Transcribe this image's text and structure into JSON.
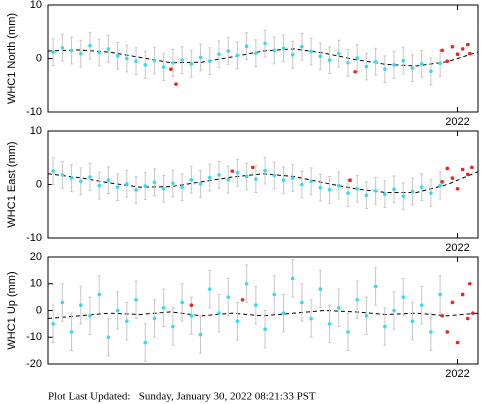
{
  "chart_data": [
    {
      "type": "scatter",
      "ylabel": "WHC1 North (mm)",
      "xlim": [
        2018.0,
        2022.2
      ],
      "ylim": [
        -10,
        10
      ],
      "xticks": [
        2022
      ],
      "yticks": [
        -10,
        0,
        10
      ],
      "series": [
        {
          "style": "line",
          "color": "#000000",
          "x": [
            2018.0,
            2018.3,
            2018.6,
            2018.9,
            2019.2,
            2019.5,
            2019.8,
            2020.1,
            2020.4,
            2020.7,
            2021.0,
            2021.3,
            2021.6,
            2021.9,
            2022.2
          ],
          "values": [
            1.4,
            1.6,
            1.2,
            0.2,
            -0.8,
            -0.7,
            0.3,
            1.4,
            1.8,
            1.0,
            -0.2,
            -1.1,
            -1.4,
            -0.6,
            1.2
          ]
        },
        {
          "style": "points",
          "color": "#33ddee",
          "error": 2.5,
          "x": [
            2018.05,
            2018.14,
            2018.23,
            2018.32,
            2018.41,
            2018.5,
            2018.59,
            2018.68,
            2018.77,
            2018.86,
            2018.95,
            2019.04,
            2019.13,
            2019.22,
            2019.31,
            2019.4,
            2019.49,
            2019.58,
            2019.67,
            2019.76,
            2019.85,
            2019.94,
            2020.03,
            2020.12,
            2020.21,
            2020.3,
            2020.39,
            2020.48,
            2020.57,
            2020.66,
            2020.75,
            2020.84,
            2020.93,
            2021.02,
            2021.11,
            2021.2,
            2021.29,
            2021.38,
            2021.47,
            2021.56,
            2021.65,
            2021.74,
            2021.83
          ],
          "values": [
            1.2,
            2.0,
            1.5,
            0.9,
            2.4,
            1.1,
            1.8,
            0.5,
            0.0,
            -0.5,
            -1.2,
            -0.4,
            -1.6,
            -0.8,
            -0.3,
            -1.0,
            0.2,
            -0.5,
            0.8,
            1.4,
            0.6,
            2.3,
            1.0,
            2.8,
            1.5,
            1.9,
            0.7,
            2.2,
            1.3,
            0.4,
            -0.3,
            0.9,
            -0.8,
            0.1,
            -1.5,
            -0.6,
            -2.0,
            -1.2,
            -0.4,
            -1.8,
            -1.0,
            -2.4,
            -0.9
          ]
        },
        {
          "style": "points",
          "color": "#ee2222",
          "x": [
            2019.2,
            2019.25,
            2021.0,
            2021.85,
            2021.9,
            2021.95,
            2022.0,
            2022.05,
            2022.1,
            2022.12
          ],
          "values": [
            -2.0,
            -4.8,
            -2.5,
            1.5,
            -0.5,
            2.2,
            0.8,
            1.8,
            2.6,
            0.9
          ]
        }
      ]
    },
    {
      "type": "scatter",
      "ylabel": "WHC1 East (mm)",
      "xlim": [
        2018.0,
        2022.2
      ],
      "ylim": [
        -10,
        10
      ],
      "xticks": [
        2022
      ],
      "yticks": [
        -10,
        0,
        10
      ],
      "series": [
        {
          "style": "line",
          "color": "#000000",
          "x": [
            2018.0,
            2018.3,
            2018.6,
            2018.9,
            2019.2,
            2019.5,
            2019.8,
            2020.1,
            2020.4,
            2020.7,
            2021.0,
            2021.3,
            2021.6,
            2021.9,
            2022.2
          ],
          "values": [
            2.0,
            1.3,
            0.3,
            -0.5,
            -0.4,
            0.5,
            1.4,
            2.0,
            1.5,
            0.3,
            -0.8,
            -1.5,
            -1.5,
            0.0,
            2.4
          ]
        },
        {
          "style": "points",
          "color": "#33ddee",
          "error": 2.5,
          "x": [
            2018.05,
            2018.14,
            2018.23,
            2018.32,
            2018.41,
            2018.5,
            2018.59,
            2018.68,
            2018.77,
            2018.86,
            2018.95,
            2019.04,
            2019.13,
            2019.22,
            2019.31,
            2019.4,
            2019.49,
            2019.58,
            2019.67,
            2019.76,
            2019.85,
            2019.94,
            2020.03,
            2020.12,
            2020.21,
            2020.3,
            2020.39,
            2020.48,
            2020.57,
            2020.66,
            2020.75,
            2020.84,
            2020.93,
            2021.02,
            2021.11,
            2021.2,
            2021.29,
            2021.38,
            2021.47,
            2021.56,
            2021.65,
            2021.74,
            2021.83
          ],
          "values": [
            2.5,
            1.8,
            1.2,
            0.6,
            1.4,
            -0.2,
            0.8,
            -0.5,
            0.1,
            -1.0,
            -0.3,
            0.4,
            -0.8,
            0.2,
            -0.5,
            0.9,
            0.1,
            1.3,
            1.8,
            0.9,
            2.2,
            1.5,
            1.0,
            2.6,
            1.7,
            0.8,
            1.2,
            0.0,
            0.6,
            -0.6,
            -1.0,
            -0.2,
            -1.6,
            -0.8,
            -2.0,
            -1.2,
            -1.8,
            -0.9,
            -2.2,
            -1.3,
            -0.5,
            -1.6,
            -0.2
          ]
        },
        {
          "style": "points",
          "color": "#ee2222",
          "x": [
            2019.8,
            2020.0,
            2020.95,
            2021.85,
            2021.9,
            2021.95,
            2022.0,
            2022.05,
            2022.1,
            2022.14
          ],
          "values": [
            2.5,
            3.2,
            0.8,
            0.5,
            3.0,
            1.2,
            -0.8,
            2.8,
            1.9,
            3.2
          ]
        }
      ]
    },
    {
      "type": "scatter",
      "ylabel": "WHC1 Up (mm)",
      "xlim": [
        2018.0,
        2022.2
      ],
      "ylim": [
        -20,
        20
      ],
      "xticks": [
        2022
      ],
      "yticks": [
        -20,
        -10,
        0,
        10,
        20
      ],
      "series": [
        {
          "style": "line",
          "color": "#000000",
          "x": [
            2018.0,
            2018.3,
            2018.6,
            2018.9,
            2019.2,
            2019.5,
            2019.8,
            2020.1,
            2020.4,
            2020.7,
            2021.0,
            2021.3,
            2021.6,
            2021.9,
            2022.2
          ],
          "values": [
            -3,
            -2,
            -1,
            -1.5,
            -0.5,
            -2,
            -1,
            -2,
            -1,
            0,
            -0.5,
            -1.5,
            -1,
            -2,
            -1
          ]
        },
        {
          "style": "points",
          "color": "#33ddee",
          "error": 7,
          "x": [
            2018.05,
            2018.14,
            2018.23,
            2018.32,
            2018.41,
            2018.5,
            2018.59,
            2018.68,
            2018.77,
            2018.86,
            2018.95,
            2019.04,
            2019.13,
            2019.22,
            2019.31,
            2019.4,
            2019.49,
            2019.58,
            2019.67,
            2019.76,
            2019.85,
            2019.94,
            2020.03,
            2020.12,
            2020.21,
            2020.3,
            2020.39,
            2020.48,
            2020.57,
            2020.66,
            2020.75,
            2020.84,
            2020.93,
            2021.02,
            2021.11,
            2021.2,
            2021.29,
            2021.38,
            2021.47,
            2021.56,
            2021.65,
            2021.74,
            2021.83
          ],
          "values": [
            -5,
            3,
            -8,
            2,
            -2,
            6,
            -10,
            0,
            -4,
            4,
            -12,
            -3,
            1,
            -6,
            3,
            -2,
            -9,
            8,
            -1,
            5,
            -4,
            10,
            2,
            -7,
            6,
            -1,
            12,
            3,
            -3,
            8,
            -5,
            1,
            -8,
            4,
            -2,
            9,
            -6,
            0,
            5,
            -4,
            2,
            -8,
            6
          ]
        },
        {
          "style": "points",
          "color": "#ee2222",
          "x": [
            2019.4,
            2019.9,
            2021.85,
            2021.9,
            2021.95,
            2022.0,
            2022.05,
            2022.1,
            2022.12,
            2022.15
          ],
          "values": [
            2,
            4,
            -2,
            -8,
            3,
            -12,
            6,
            -3,
            10,
            -1
          ]
        }
      ]
    }
  ],
  "footer": "Plot Last Updated:   Sunday, January 30, 2022 08:21:33 PST"
}
